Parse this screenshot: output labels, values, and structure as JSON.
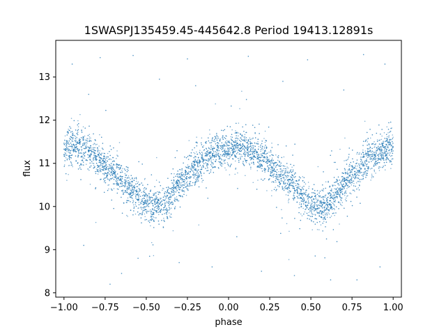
{
  "chart_data": {
    "type": "scatter",
    "title": "1SWASPJ135459.45-445642.8 Period 19413.12891s",
    "xlabel": "phase",
    "ylabel": "flux",
    "xlim": [
      -1.05,
      1.05
    ],
    "ylim": [
      7.9,
      13.85
    ],
    "xticks": [
      -1.0,
      -0.75,
      -0.5,
      -0.25,
      0.0,
      0.25,
      0.5,
      0.75,
      1.0
    ],
    "xtick_labels": [
      "−1.00",
      "−0.75",
      "−0.50",
      "−0.25",
      "0.00",
      "0.25",
      "0.50",
      "0.75",
      "1.00"
    ],
    "yticks": [
      8,
      9,
      10,
      11,
      12,
      13
    ],
    "ytick_labels": [
      "8",
      "9",
      "10",
      "11",
      "12",
      "13"
    ],
    "grid": false,
    "series": [
      {
        "color": "#1f77b4",
        "marker_alpha": 0.6,
        "points": [
          [
            -1.0,
            11.32
          ],
          [
            -0.95,
            11.4
          ],
          [
            -0.9,
            11.38
          ],
          [
            -0.85,
            11.28
          ],
          [
            -0.8,
            11.12
          ],
          [
            -0.75,
            10.95
          ],
          [
            -0.7,
            10.8
          ],
          [
            -0.65,
            10.63
          ],
          [
            -0.6,
            10.45
          ],
          [
            -0.55,
            10.25
          ],
          [
            -0.5,
            10.08
          ],
          [
            -0.45,
            9.98
          ],
          [
            -0.4,
            10.05
          ],
          [
            -0.35,
            10.25
          ],
          [
            -0.3,
            10.5
          ],
          [
            -0.25,
            10.72
          ],
          [
            -0.2,
            10.92
          ],
          [
            -0.15,
            11.08
          ],
          [
            -0.1,
            11.2
          ],
          [
            -0.05,
            11.3
          ],
          [
            0.0,
            11.35
          ],
          [
            0.05,
            11.38
          ],
          [
            0.1,
            11.35
          ],
          [
            0.15,
            11.25
          ],
          [
            0.2,
            11.12
          ],
          [
            0.25,
            10.95
          ],
          [
            0.3,
            10.8
          ],
          [
            0.35,
            10.63
          ],
          [
            0.4,
            10.45
          ],
          [
            0.45,
            10.25
          ],
          [
            0.5,
            10.08
          ],
          [
            0.55,
            9.98
          ],
          [
            0.6,
            10.05
          ],
          [
            0.65,
            10.25
          ],
          [
            0.7,
            10.5
          ],
          [
            0.75,
            10.72
          ],
          [
            0.8,
            10.92
          ],
          [
            0.85,
            11.08
          ],
          [
            0.9,
            11.2
          ],
          [
            0.95,
            11.3
          ],
          [
            1.0,
            11.35
          ]
        ],
        "outliers": [
          [
            -0.78,
            13.45
          ],
          [
            -0.58,
            13.5
          ],
          [
            -0.25,
            13.42
          ],
          [
            0.12,
            13.48
          ],
          [
            0.48,
            13.4
          ],
          [
            0.82,
            13.52
          ],
          [
            0.95,
            13.3
          ],
          [
            -0.95,
            13.3
          ],
          [
            -0.42,
            12.95
          ],
          [
            0.33,
            12.9
          ],
          [
            -0.65,
            8.45
          ],
          [
            -0.3,
            8.7
          ],
          [
            0.2,
            8.5
          ],
          [
            0.62,
            8.3
          ],
          [
            -0.72,
            8.2
          ],
          [
            0.78,
            8.3
          ],
          [
            -0.55,
            8.8
          ],
          [
            0.4,
            8.4
          ],
          [
            -0.1,
            8.6
          ],
          [
            0.92,
            8.6
          ],
          [
            -0.88,
            9.1
          ],
          [
            0.05,
            9.3
          ],
          [
            -0.2,
            12.8
          ],
          [
            0.7,
            12.7
          ],
          [
            -0.85,
            12.6
          ]
        ]
      }
    ]
  }
}
